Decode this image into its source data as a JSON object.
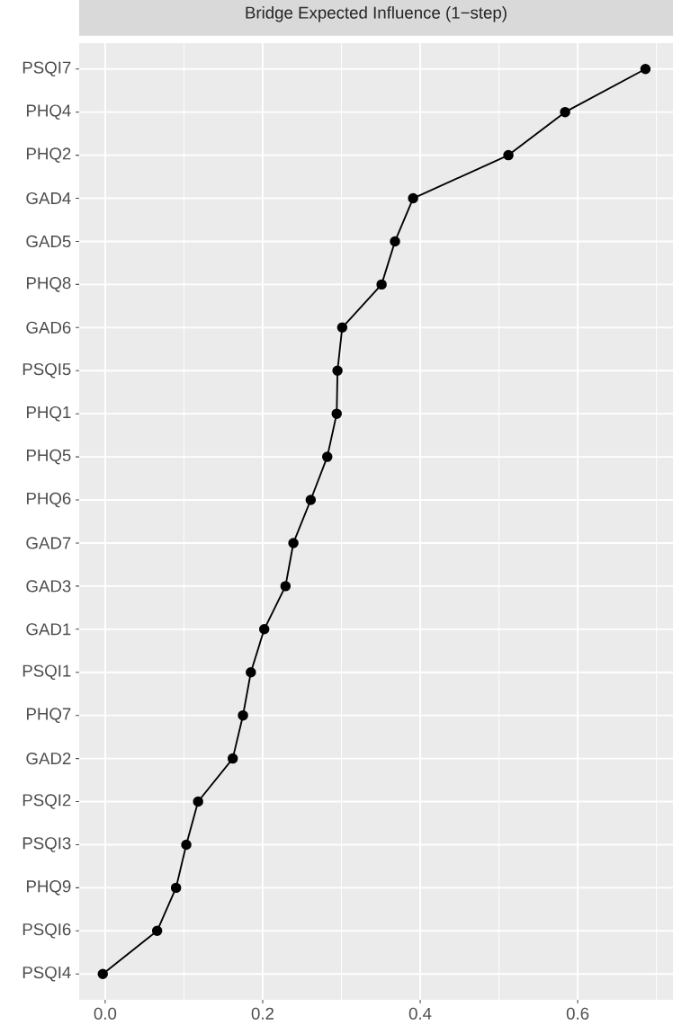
{
  "chart_data": {
    "type": "line",
    "orientation": "horizontal",
    "title": "Bridge Expected Influence (1−step)",
    "categories": [
      "PSQI7",
      "PHQ4",
      "PHQ2",
      "GAD4",
      "GAD5",
      "PHQ8",
      "GAD6",
      "PSQI5",
      "PHQ1",
      "PHQ5",
      "PHQ6",
      "GAD7",
      "GAD3",
      "GAD1",
      "PSQI1",
      "PHQ7",
      "GAD2",
      "PSQI2",
      "PSQI3",
      "PHQ9",
      "PSQI6",
      "PSQI4"
    ],
    "values": [
      0.686,
      0.584,
      0.512,
      0.391,
      0.368,
      0.351,
      0.301,
      0.295,
      0.294,
      0.282,
      0.261,
      0.239,
      0.229,
      0.202,
      0.185,
      0.175,
      0.162,
      0.118,
      0.103,
      0.09,
      0.066,
      -0.003
    ],
    "color": "#000000",
    "marker": "circle",
    "line_style": "solid",
    "grid": true,
    "xlim": [
      -0.033,
      0.721
    ],
    "xticks": [
      {
        "value": 0,
        "label": "0.0"
      },
      {
        "value": 0.2,
        "label": "0.2"
      },
      {
        "value": 0.4,
        "label": "0.4"
      },
      {
        "value": 0.6,
        "label": "0.6"
      }
    ]
  }
}
